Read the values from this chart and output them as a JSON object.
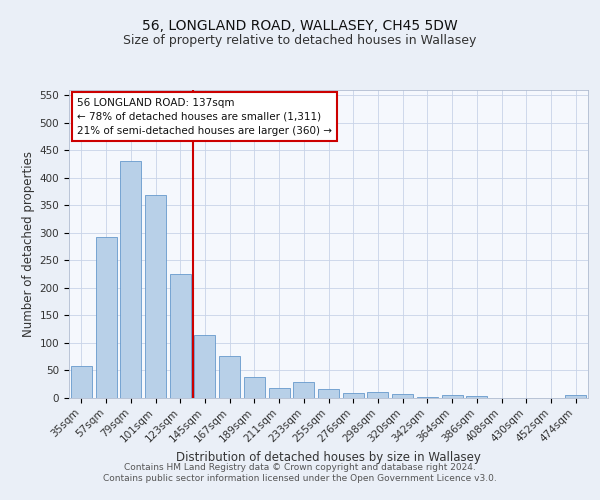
{
  "title1": "56, LONGLAND ROAD, WALLASEY, CH45 5DW",
  "title2": "Size of property relative to detached houses in Wallasey",
  "xlabel": "Distribution of detached houses by size in Wallasey",
  "ylabel": "Number of detached properties",
  "categories": [
    "35sqm",
    "57sqm",
    "79sqm",
    "101sqm",
    "123sqm",
    "145sqm",
    "167sqm",
    "189sqm",
    "211sqm",
    "233sqm",
    "255sqm",
    "276sqm",
    "298sqm",
    "320sqm",
    "342sqm",
    "364sqm",
    "386sqm",
    "408sqm",
    "430sqm",
    "452sqm",
    "474sqm"
  ],
  "values": [
    57,
    292,
    430,
    368,
    225,
    113,
    76,
    38,
    18,
    29,
    16,
    9,
    10,
    7,
    1,
    5,
    3,
    0,
    0,
    0,
    4
  ],
  "bar_color": "#b8d0e8",
  "bar_edge_color": "#6699cc",
  "vline_color": "#cc0000",
  "annotation_title": "56 LONGLAND ROAD: 137sqm",
  "annotation_line1": "← 78% of detached houses are smaller (1,311)",
  "annotation_line2": "21% of semi-detached houses are larger (360) →",
  "annotation_box_color": "#ffffff",
  "annotation_box_edge_color": "#cc0000",
  "ylim": [
    0,
    560
  ],
  "yticks": [
    0,
    50,
    100,
    150,
    200,
    250,
    300,
    350,
    400,
    450,
    500,
    550
  ],
  "bg_color": "#eaeff7",
  "plot_bg_color": "#f5f8fd",
  "footer1": "Contains HM Land Registry data © Crown copyright and database right 2024.",
  "footer2": "Contains public sector information licensed under the Open Government Licence v3.0.",
  "title1_fontsize": 10,
  "title2_fontsize": 9,
  "axis_label_fontsize": 8.5,
  "tick_fontsize": 7.5,
  "footer_fontsize": 6.5,
  "annotation_fontsize": 7.5
}
